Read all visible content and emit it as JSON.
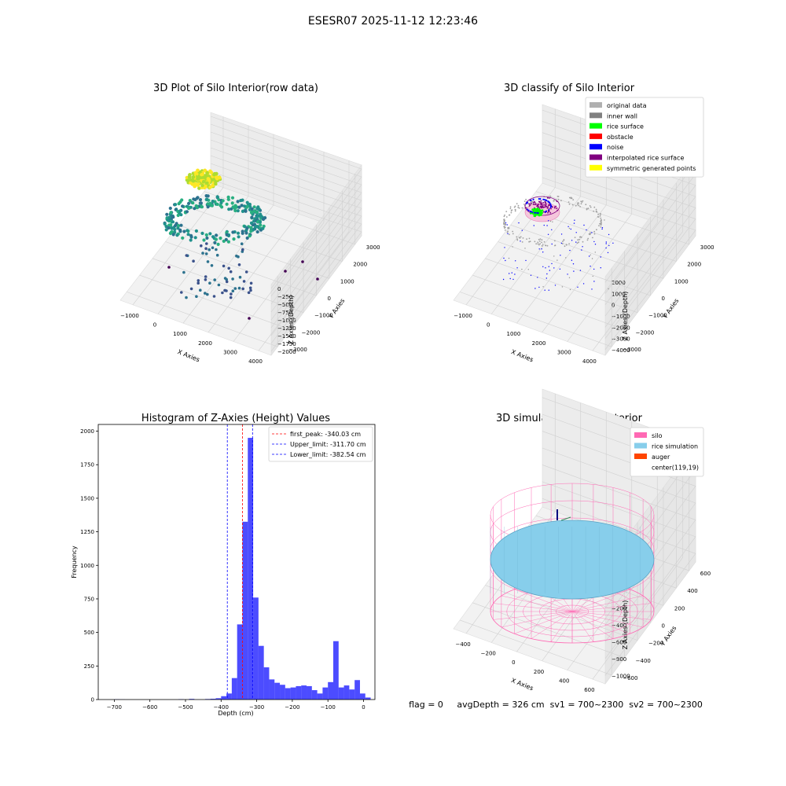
{
  "suptitle": "ESESR07 2025-11-12 12:23:46",
  "chart_data": [
    {
      "type": "scatter",
      "title": "3D Plot of Silo Interior(row data)",
      "xlabel": "X Axies",
      "ylabel": "Y Axies",
      "zlabel": "Z Axies (Depth)",
      "x_ticks": [
        "−1000",
        "0",
        "1000",
        "2000",
        "3000",
        "4000"
      ],
      "y_ticks": [
        "3000",
        "2000",
        "1000",
        "0",
        "−1000",
        "−2000",
        "−3000"
      ],
      "z_ticks": [
        "0",
        "−250",
        "−500",
        "−750",
        "−1000",
        "−1250",
        "−1500",
        "−1750",
        "−2000"
      ],
      "colormap": "viridis"
    },
    {
      "type": "scatter",
      "title": "3D classify of Silo Interior",
      "xlabel": "X Axies",
      "ylabel": "Y Axies",
      "zlabel": "Z Axies (Depth)",
      "x_ticks": [
        "−1000",
        "0",
        "1000",
        "2000",
        "3000",
        "4000"
      ],
      "y_ticks": [
        "3000",
        "2000",
        "1000",
        "0",
        "−1000",
        "−2000",
        "−3000"
      ],
      "z_ticks": [
        "2000",
        "1000",
        "0",
        "−1000",
        "−2000",
        "−3000",
        "−4000"
      ],
      "legend_position": "top-right",
      "legend": [
        {
          "label": "original data",
          "color": "#b0b0b0"
        },
        {
          "label": "inner wall",
          "color": "#808080"
        },
        {
          "label": "rice surface",
          "color": "#00ff00"
        },
        {
          "label": "obstacle",
          "color": "#ff0000"
        },
        {
          "label": "noise",
          "color": "#0000ff"
        },
        {
          "label": "interpolated rice surface",
          "color": "#800080"
        },
        {
          "label": "symmetric generated points",
          "color": "#ffff00"
        }
      ]
    },
    {
      "type": "bar",
      "title": "Histogram of Z-Axies (Height) Values",
      "xlabel": "Depth (cm)",
      "ylabel": "Frequency",
      "xlim": [
        -745,
        32
      ],
      "ylim": [
        0,
        2050
      ],
      "x_ticks": [
        -700,
        -600,
        -500,
        -400,
        -300,
        -200,
        -100,
        0
      ],
      "y_ticks": [
        0,
        250,
        500,
        750,
        1000,
        1250,
        1500,
        1750,
        2000
      ],
      "bar_color": "#0000ff",
      "bin_width": 15,
      "bins": [
        {
          "x": -700,
          "v": 2
        },
        {
          "x": -685,
          "v": 1
        },
        {
          "x": -520,
          "v": 3
        },
        {
          "x": -490,
          "v": 5
        },
        {
          "x": -445,
          "v": 4
        },
        {
          "x": -430,
          "v": 6
        },
        {
          "x": -415,
          "v": 10
        },
        {
          "x": -400,
          "v": 25
        },
        {
          "x": -385,
          "v": 45
        },
        {
          "x": -370,
          "v": 160
        },
        {
          "x": -355,
          "v": 560
        },
        {
          "x": -340,
          "v": 1325
        },
        {
          "x": -325,
          "v": 1950
        },
        {
          "x": -310,
          "v": 760
        },
        {
          "x": -295,
          "v": 400
        },
        {
          "x": -280,
          "v": 240
        },
        {
          "x": -265,
          "v": 150
        },
        {
          "x": -250,
          "v": 125
        },
        {
          "x": -235,
          "v": 110
        },
        {
          "x": -220,
          "v": 85
        },
        {
          "x": -205,
          "v": 90
        },
        {
          "x": -190,
          "v": 100
        },
        {
          "x": -175,
          "v": 105
        },
        {
          "x": -160,
          "v": 100
        },
        {
          "x": -145,
          "v": 70
        },
        {
          "x": -130,
          "v": 45
        },
        {
          "x": -115,
          "v": 90
        },
        {
          "x": -100,
          "v": 130
        },
        {
          "x": -85,
          "v": 435
        },
        {
          "x": -70,
          "v": 90
        },
        {
          "x": -55,
          "v": 105
        },
        {
          "x": -40,
          "v": 75
        },
        {
          "x": -25,
          "v": 145
        },
        {
          "x": -10,
          "v": 45
        },
        {
          "x": 5,
          "v": 15
        }
      ],
      "vlines": [
        {
          "label": "first_peak: -340.03 cm",
          "x": -340.03,
          "color": "#ff0000"
        },
        {
          "label": "Upper_limit: -311.70 cm",
          "x": -311.7,
          "color": "#0000ff"
        },
        {
          "label": "Lower_limit: -382.54 cm",
          "x": -382.54,
          "color": "#0000ff"
        }
      ],
      "legend_position": "top-right"
    },
    {
      "type": "scatter",
      "title": "3D simulation of Silo Interior",
      "xlabel": "X Axies",
      "ylabel": "Y Axies",
      "zlabel": "Z Axies (Depth)",
      "x_ticks": [
        "−400",
        "−200",
        "0",
        "200",
        "400",
        "600"
      ],
      "y_ticks": [
        "600",
        "400",
        "200",
        "0",
        "−200",
        "−400",
        "−600"
      ],
      "z_ticks": [
        "200",
        "0",
        "−200",
        "−400",
        "−600",
        "−800",
        "−1000"
      ],
      "legend_position": "top-right",
      "legend": [
        {
          "label": "silo",
          "color": "#ff69b4"
        },
        {
          "label": "rice simulation",
          "color": "#87ceeb"
        },
        {
          "label": "auger",
          "color": "#ff4500"
        },
        {
          "label": "center(119,19)",
          "color": "#ffffff"
        }
      ]
    }
  ],
  "status_text": "flag = 0     avgDepth = 326 cm  sv1 = 700~2300  sv2 = 700~2300"
}
